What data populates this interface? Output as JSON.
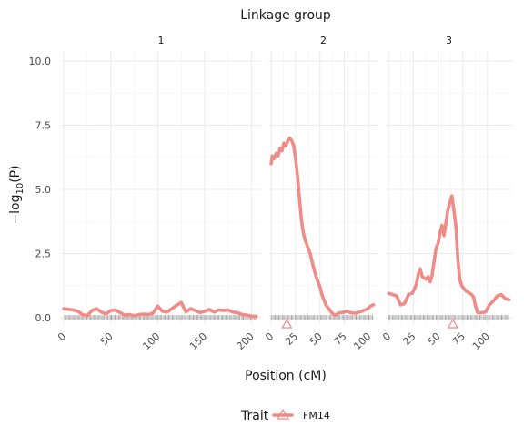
{
  "chart_data": {
    "type": "line",
    "top_title": "Linkage group",
    "xlabel": "Position (cM)",
    "ylabel_prefix": "−log",
    "ylabel_sub": "10",
    "ylabel_suffix": "(P)",
    "ylim": [
      0,
      10.5
    ],
    "y_ticks": [
      0.0,
      2.5,
      5.0,
      7.5,
      10.0
    ],
    "y_tick_labels": [
      "0.0",
      "2.5",
      "5.0",
      "7.5",
      "10.0"
    ],
    "grid": true,
    "color": "#F08C88",
    "legend": {
      "title": "Trait",
      "entries": [
        "FM14"
      ],
      "position": "bottom"
    },
    "panels": [
      {
        "label": "1",
        "xlim": [
          -3,
          210
        ],
        "x_ticks": [
          0,
          50,
          100,
          150,
          200
        ],
        "x": [
          0,
          5,
          10,
          15,
          20,
          25,
          30,
          35,
          40,
          45,
          50,
          55,
          60,
          65,
          70,
          75,
          80,
          85,
          90,
          95,
          100,
          105,
          110,
          115,
          120,
          125,
          130,
          135,
          140,
          145,
          150,
          155,
          160,
          165,
          170,
          175,
          180,
          185,
          190,
          195,
          200,
          205
        ],
        "y": [
          0.35,
          0.33,
          0.3,
          0.25,
          0.12,
          0.08,
          0.28,
          0.35,
          0.22,
          0.15,
          0.28,
          0.3,
          0.2,
          0.1,
          0.12,
          0.08,
          0.12,
          0.14,
          0.12,
          0.18,
          0.45,
          0.25,
          0.22,
          0.35,
          0.48,
          0.6,
          0.22,
          0.35,
          0.28,
          0.2,
          0.25,
          0.32,
          0.22,
          0.3,
          0.28,
          0.3,
          0.22,
          0.2,
          0.12,
          0.1,
          0.06,
          0.05
        ],
        "peak_x": null
      },
      {
        "label": "2",
        "xlim": [
          -3,
          110
        ],
        "x_ticks": [
          0,
          25,
          50,
          75,
          100
        ],
        "x": [
          0,
          1,
          3,
          5,
          7,
          9,
          11,
          13,
          15,
          17,
          19,
          21,
          23,
          25,
          27,
          29,
          31,
          33,
          35,
          37,
          40,
          43,
          46,
          48,
          50,
          52,
          54,
          56,
          58,
          60,
          63,
          66,
          69,
          72,
          75,
          78,
          81,
          84,
          87,
          90,
          93,
          96,
          99,
          102,
          105
        ],
        "y": [
          6.0,
          6.3,
          6.2,
          6.4,
          6.3,
          6.6,
          6.5,
          6.8,
          6.7,
          6.9,
          7.0,
          6.9,
          6.7,
          6.2,
          5.5,
          4.6,
          3.8,
          3.3,
          3.0,
          2.8,
          2.5,
          2.0,
          1.6,
          1.4,
          1.2,
          0.9,
          0.7,
          0.5,
          0.4,
          0.3,
          0.15,
          0.1,
          0.18,
          0.2,
          0.22,
          0.25,
          0.2,
          0.18,
          0.18,
          0.22,
          0.25,
          0.3,
          0.35,
          0.45,
          0.5
        ],
        "peak_x": 16
      },
      {
        "label": "3",
        "xlim": [
          -3,
          125
        ],
        "x_ticks": [
          0,
          25,
          50,
          75,
          100
        ],
        "x": [
          0,
          4,
          8,
          12,
          16,
          20,
          24,
          28,
          30,
          32,
          34,
          36,
          38,
          40,
          42,
          44,
          46,
          48,
          50,
          52,
          54,
          56,
          58,
          60,
          62,
          64,
          66,
          68,
          70,
          72,
          74,
          76,
          78,
          80,
          82,
          84,
          86,
          88,
          90,
          94,
          98,
          102,
          106,
          110,
          114,
          118,
          122
        ],
        "y": [
          0.95,
          0.9,
          0.85,
          0.5,
          0.55,
          0.9,
          0.95,
          1.3,
          1.7,
          1.9,
          1.6,
          1.55,
          1.5,
          1.6,
          1.4,
          1.65,
          2.2,
          2.7,
          2.9,
          3.3,
          3.6,
          3.2,
          3.7,
          4.2,
          4.5,
          4.75,
          4.2,
          3.6,
          2.3,
          1.5,
          1.25,
          1.15,
          1.05,
          1.0,
          0.95,
          0.9,
          0.8,
          0.45,
          0.2,
          0.2,
          0.22,
          0.5,
          0.65,
          0.85,
          0.9,
          0.75,
          0.7
        ],
        "peak_x": 65
      }
    ]
  }
}
